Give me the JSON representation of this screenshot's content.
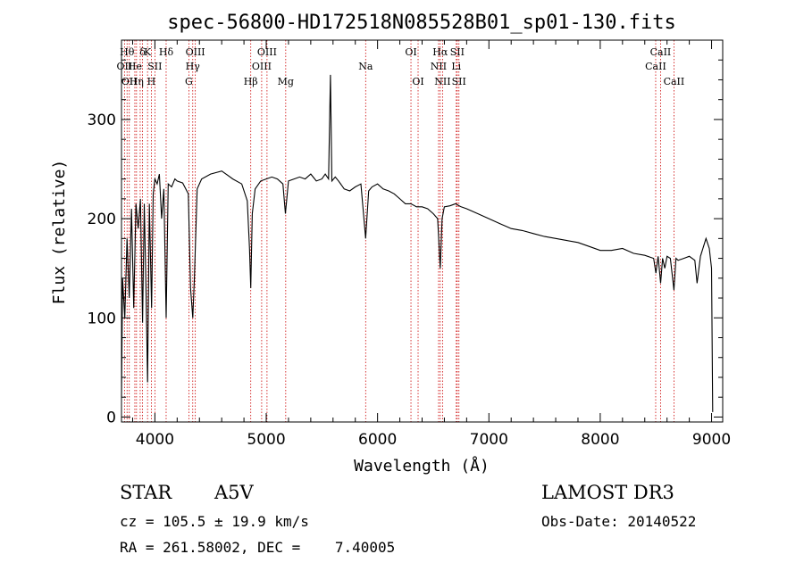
{
  "chart_data": {
    "type": "line",
    "title": "spec-56800-HD172518N085528B01_sp01-130.fits",
    "xlabel": "Wavelength (Å)",
    "ylabel": "Flux (relative)",
    "xlim": [
      3700,
      9100
    ],
    "ylim": [
      -5,
      380
    ],
    "xticks": [
      4000,
      5000,
      6000,
      7000,
      8000,
      9000
    ],
    "yticks": [
      0,
      100,
      200,
      300
    ],
    "series": [
      {
        "name": "spectrum",
        "x": [
          3700,
          3710,
          3730,
          3750,
          3770,
          3790,
          3810,
          3830,
          3850,
          3870,
          3889,
          3905,
          3920,
          3934,
          3950,
          3970,
          3985,
          4000,
          4020,
          4040,
          4060,
          4080,
          4101,
          4120,
          4150,
          4180,
          4200,
          4250,
          4300,
          4320,
          4340,
          4355,
          4380,
          4420,
          4500,
          4600,
          4700,
          4780,
          4830,
          4850,
          4861,
          4875,
          4900,
          4950,
          5000,
          5050,
          5100,
          5150,
          5172,
          5200,
          5250,
          5300,
          5350,
          5400,
          5450,
          5500,
          5530,
          5560,
          5577,
          5590,
          5620,
          5650,
          5700,
          5750,
          5800,
          5850,
          5893,
          5920,
          5950,
          6000,
          6050,
          6100,
          6150,
          6200,
          6250,
          6300,
          6350,
          6400,
          6450,
          6500,
          6540,
          6563,
          6580,
          6600,
          6650,
          6700,
          6750,
          6800,
          6900,
          7000,
          7100,
          7200,
          7300,
          7400,
          7500,
          7600,
          7700,
          7800,
          7900,
          8000,
          8100,
          8200,
          8300,
          8400,
          8480,
          8500,
          8520,
          8542,
          8560,
          8580,
          8600,
          8630,
          8662,
          8680,
          8700,
          8750,
          8800,
          8850,
          8870,
          8900,
          8950,
          8980,
          9000,
          9010
        ],
        "y": [
          20,
          140,
          100,
          180,
          120,
          210,
          110,
          215,
          190,
          220,
          95,
          215,
          130,
          35,
          215,
          110,
          225,
          240,
          235,
          245,
          200,
          230,
          100,
          235,
          232,
          240,
          238,
          236,
          225,
          130,
          100,
          140,
          230,
          240,
          245,
          248,
          240,
          235,
          218,
          170,
          130,
          205,
          230,
          238,
          240,
          242,
          240,
          235,
          205,
          238,
          240,
          242,
          240,
          245,
          238,
          240,
          245,
          240,
          345,
          238,
          242,
          238,
          230,
          228,
          232,
          235,
          180,
          228,
          232,
          235,
          230,
          228,
          225,
          220,
          215,
          215,
          212,
          212,
          210,
          205,
          200,
          150,
          200,
          212,
          213,
          215,
          212,
          210,
          205,
          200,
          195,
          190,
          188,
          185,
          182,
          180,
          178,
          176,
          172,
          168,
          168,
          170,
          165,
          163,
          160,
          145,
          162,
          135,
          160,
          150,
          162,
          160,
          128,
          160,
          158,
          160,
          162,
          158,
          135,
          162,
          180,
          170,
          150,
          5
        ]
      }
    ],
    "lines": [
      {
        "wl": 3727,
        "tier": 1,
        "label": "OII",
        "side": "c"
      },
      {
        "wl": 3750,
        "tier": 0,
        "label": "Hθ",
        "side": "r"
      },
      {
        "wl": 3770,
        "tier": 2,
        "label": "OII",
        "side": "c"
      },
      {
        "wl": 3820,
        "tier": 1,
        "label": "He",
        "side": "c"
      },
      {
        "wl": 3835,
        "tier": 2,
        "label": "Hη",
        "side": "c"
      },
      {
        "wl": 3868,
        "tier": 1,
        "label": "",
        "side": "c"
      },
      {
        "wl": 3889,
        "tier": 0,
        "label": "δ",
        "side": "c"
      },
      {
        "wl": 3934,
        "tier": 0,
        "label": "K",
        "side": "c"
      },
      {
        "wl": 3968,
        "tier": 2,
        "label": "H",
        "side": "c"
      },
      {
        "wl": 4000,
        "tier": 1,
        "label": "SII",
        "side": "c"
      },
      {
        "wl": 4101,
        "tier": 0,
        "label": "Hδ",
        "side": "c"
      },
      {
        "wl": 4305,
        "tier": 2,
        "label": "G",
        "side": "c"
      },
      {
        "wl": 4340,
        "tier": 1,
        "label": "Hγ",
        "side": "c"
      },
      {
        "wl": 4363,
        "tier": 0,
        "label": "OIII",
        "side": "c"
      },
      {
        "wl": 4861,
        "tier": 2,
        "label": "Hβ",
        "side": "c"
      },
      {
        "wl": 4959,
        "tier": 1,
        "label": "OIII",
        "side": "c"
      },
      {
        "wl": 5007,
        "tier": 0,
        "label": "OIII",
        "side": "c"
      },
      {
        "wl": 5175,
        "tier": 2,
        "label": "Mg",
        "side": "c"
      },
      {
        "wl": 5893,
        "tier": 1,
        "label": "Na",
        "side": "c"
      },
      {
        "wl": 6300,
        "tier": 0,
        "label": "OI",
        "side": "c"
      },
      {
        "wl": 6364,
        "tier": 2,
        "label": "OI",
        "side": "c"
      },
      {
        "wl": 6548,
        "tier": 1,
        "label": "NII",
        "side": "c"
      },
      {
        "wl": 6563,
        "tier": 0,
        "label": "Hα",
        "side": "c"
      },
      {
        "wl": 6584,
        "tier": 2,
        "label": "NII",
        "side": "c"
      },
      {
        "wl": 6707,
        "tier": 1,
        "label": "Li",
        "side": "c"
      },
      {
        "wl": 6716,
        "tier": 0,
        "label": "SII",
        "side": "c"
      },
      {
        "wl": 6731,
        "tier": 2,
        "label": "SII",
        "side": "c"
      },
      {
        "wl": 8498,
        "tier": 1,
        "label": "CaII",
        "side": "c"
      },
      {
        "wl": 8542,
        "tier": 0,
        "label": "CaII",
        "side": "c"
      },
      {
        "wl": 8662,
        "tier": 2,
        "label": "CaII",
        "side": "c"
      }
    ],
    "line_color": "#cc0000"
  },
  "footer": {
    "class": "STAR",
    "subclass": "A5V",
    "survey": "LAMOST DR3",
    "cz": "cz = 105.5 ± 19.9 km/s",
    "obsdate": "Obs-Date: 20140522",
    "radec": "RA = 261.58002, DEC =    7.40005"
  }
}
